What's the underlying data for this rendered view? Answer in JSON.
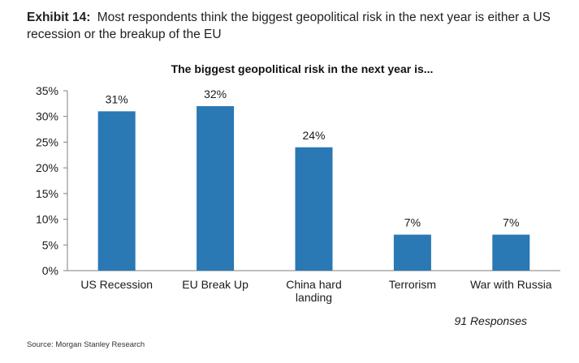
{
  "exhibit": {
    "label": "Exhibit 14:",
    "caption": "Most respondents think the biggest geopolitical risk in the next year is either a US recession or the breakup of the EU"
  },
  "chart_data": {
    "type": "bar",
    "title": "The biggest geopolitical risk in the next year is...",
    "categories": [
      "US Recession",
      "EU Break Up",
      "China hard\nlanding",
      "Terrorism",
      "War with Russia"
    ],
    "values": [
      31,
      32,
      24,
      7,
      7
    ],
    "data_labels": [
      "31%",
      "32%",
      "24%",
      "7%",
      "7%"
    ],
    "y_ticks": [
      "0%",
      "5%",
      "10%",
      "15%",
      "20%",
      "25%",
      "30%",
      "35%"
    ],
    "ylim": [
      0,
      35
    ],
    "y_step": 5,
    "xlabel": "",
    "ylabel": "",
    "grid": false,
    "bar_color": "#2A78B4"
  },
  "annotation": "91 Responses",
  "source": "Source: Morgan Stanley Research"
}
